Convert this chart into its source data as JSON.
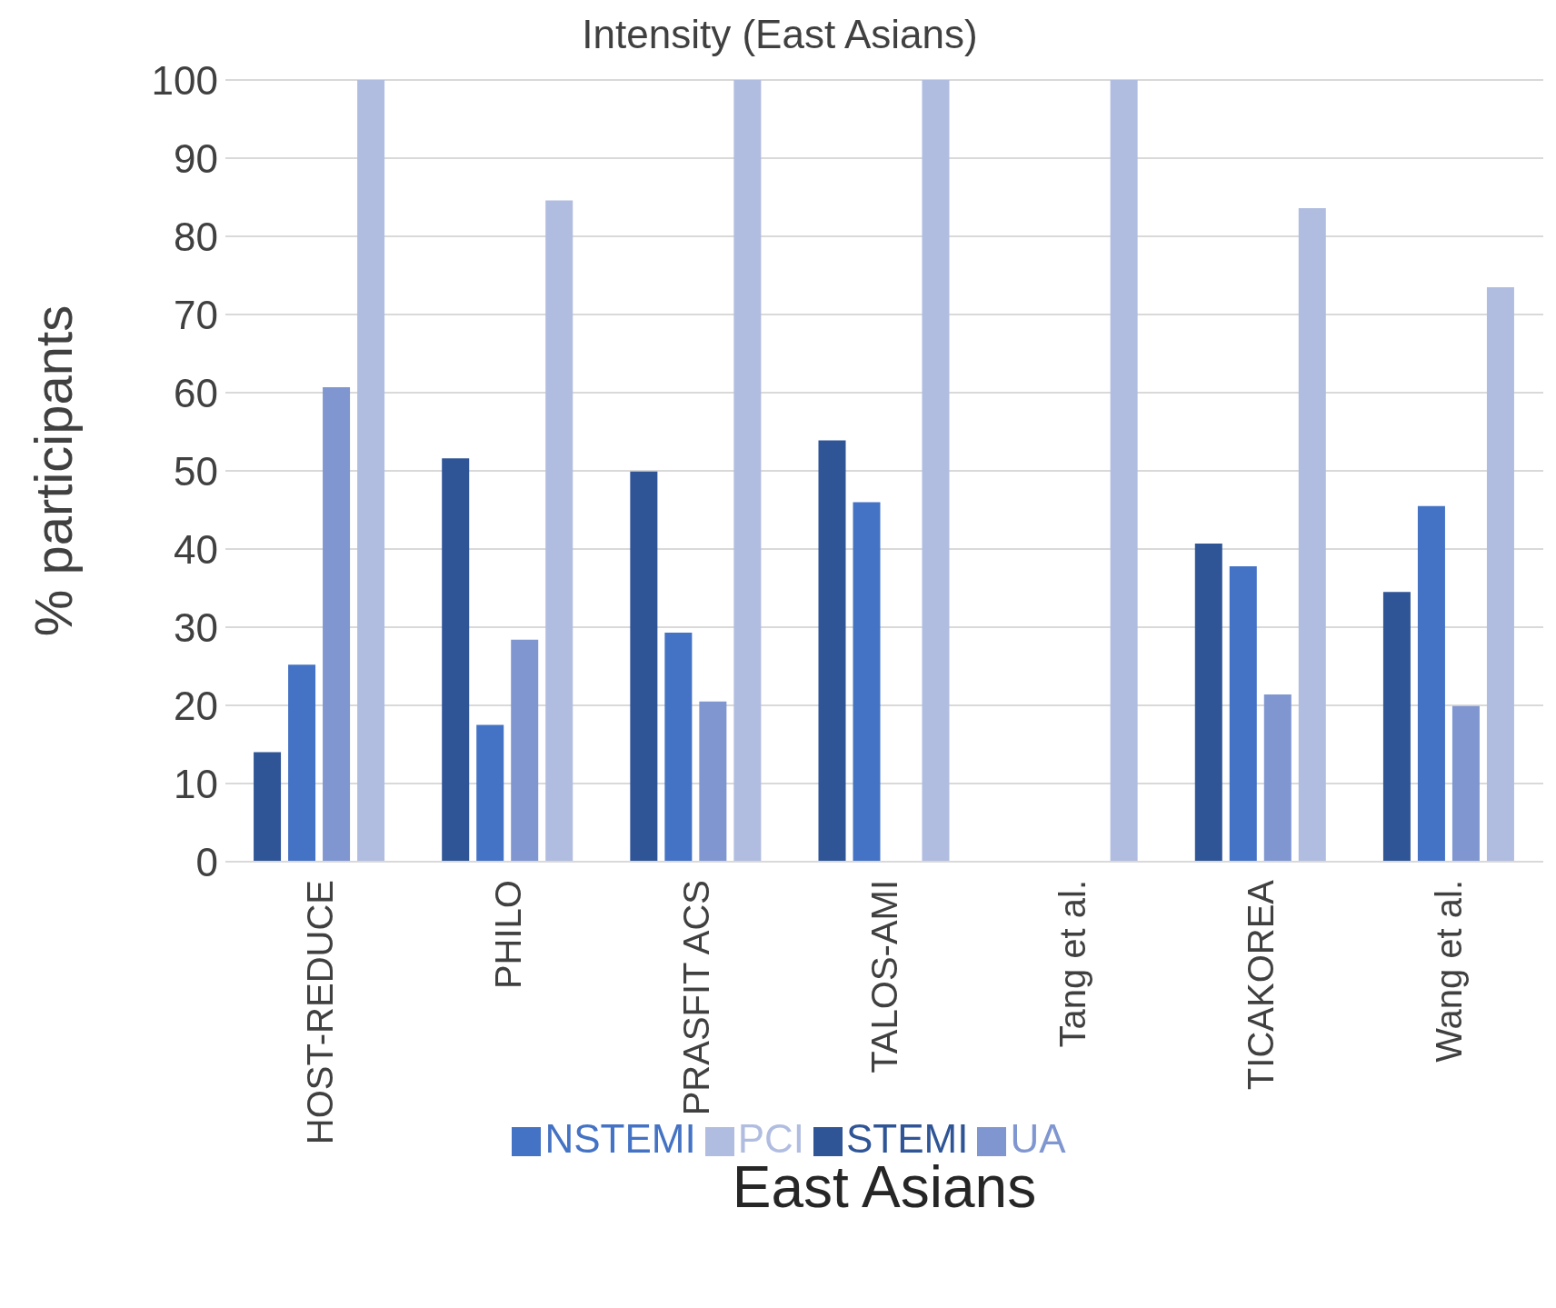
{
  "chart_data": {
    "type": "bar",
    "title": "Intensity (East Asians)",
    "xlabel": "East Asians",
    "ylabel": "% participants",
    "categories": [
      "HOST-REDUCE",
      "PHILO",
      "PRASFIT ACS",
      "TALOS-AMI",
      "Tang et al.",
      "TICAKOREA",
      "Wang et al."
    ],
    "series": [
      {
        "name": "STEMI",
        "color": "#2f5597",
        "values": [
          14,
          51.6,
          49.9,
          53.9,
          null,
          40.7,
          34.5
        ]
      },
      {
        "name": "NSTEMI",
        "color": "#4472c4",
        "values": [
          25.2,
          17.5,
          29.3,
          46,
          null,
          37.8,
          45.5
        ]
      },
      {
        "name": "UA",
        "color": "#7f96d0",
        "values": [
          60.7,
          28.4,
          20.5,
          null,
          null,
          21.4,
          19.9
        ]
      },
      {
        "name": "PCI",
        "color": "#b1bde0",
        "values": [
          100,
          84.6,
          100,
          100,
          100,
          83.6,
          73.5
        ]
      }
    ],
    "ylim": [
      0,
      100
    ],
    "yticks": [
      0,
      10,
      20,
      30,
      40,
      50,
      60,
      70,
      80,
      90,
      100
    ],
    "grid": "y",
    "legend": "bottom"
  }
}
